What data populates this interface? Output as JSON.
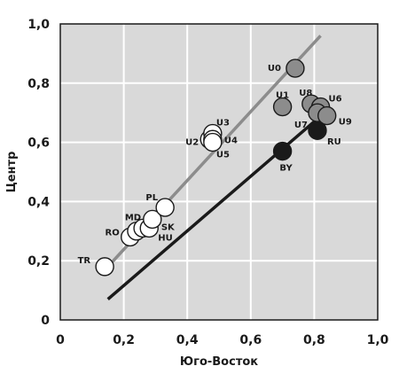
{
  "chart_data": {
    "type": "scatter",
    "title": "",
    "xlabel": "Юго-Восток",
    "ylabel": "Центр",
    "xlim": [
      0,
      1
    ],
    "ylim": [
      0,
      1
    ],
    "x_ticks": [
      "0",
      "0,2",
      "0,4",
      "0,6",
      "0,8",
      "1,0"
    ],
    "y_ticks": [
      "0",
      "0,2",
      "0,4",
      "0,6",
      "0,8",
      "1,0"
    ],
    "grid": true,
    "background_color": "#d9d9d9",
    "point_fills": {
      "white": "#ffffff",
      "gray": "#8c8c8c",
      "black": "#1a1a1a"
    },
    "lines": [
      {
        "color": "#8c8c8c",
        "points": [
          [
            0.15,
            0.18
          ],
          [
            0.82,
            0.96
          ]
        ]
      },
      {
        "color": "#1a1a1a",
        "points": [
          [
            0.15,
            0.07
          ],
          [
            0.8,
            0.67
          ]
        ]
      }
    ],
    "points": [
      {
        "label": "TR",
        "x": 0.14,
        "y": 0.18,
        "fill": "white"
      },
      {
        "label": "RO",
        "x": 0.22,
        "y": 0.28,
        "fill": "white"
      },
      {
        "label": "",
        "x": 0.24,
        "y": 0.3,
        "fill": "white"
      },
      {
        "label": "MD",
        "x": 0.26,
        "y": 0.31,
        "fill": "white"
      },
      {
        "label": "HU",
        "x": 0.28,
        "y": 0.31,
        "fill": "white"
      },
      {
        "label": "SK",
        "x": 0.29,
        "y": 0.34,
        "fill": "white"
      },
      {
        "label": "PL",
        "x": 0.33,
        "y": 0.38,
        "fill": "white"
      },
      {
        "label": "U2",
        "x": 0.47,
        "y": 0.61,
        "fill": "white"
      },
      {
        "label": "U3",
        "x": 0.48,
        "y": 0.63,
        "fill": "white"
      },
      {
        "label": "U4",
        "x": 0.48,
        "y": 0.61,
        "fill": "white"
      },
      {
        "label": "U5",
        "x": 0.48,
        "y": 0.6,
        "fill": "white"
      },
      {
        "label": "U0",
        "x": 0.74,
        "y": 0.85,
        "fill": "gray"
      },
      {
        "label": "U1",
        "x": 0.7,
        "y": 0.72,
        "fill": "gray"
      },
      {
        "label": "U8",
        "x": 0.79,
        "y": 0.73,
        "fill": "gray"
      },
      {
        "label": "U6",
        "x": 0.82,
        "y": 0.72,
        "fill": "gray"
      },
      {
        "label": "U7",
        "x": 0.81,
        "y": 0.7,
        "fill": "gray"
      },
      {
        "label": "U9",
        "x": 0.84,
        "y": 0.69,
        "fill": "gray"
      },
      {
        "label": "RU",
        "x": 0.81,
        "y": 0.64,
        "fill": "black"
      },
      {
        "label": "BY",
        "x": 0.7,
        "y": 0.57,
        "fill": "black"
      }
    ]
  }
}
